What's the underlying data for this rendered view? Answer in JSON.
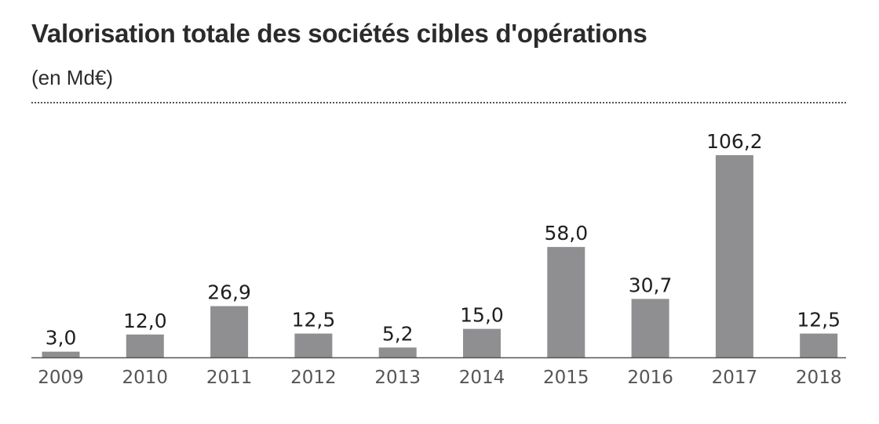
{
  "chart_data": {
    "type": "bar",
    "title": "Valorisation totale des sociétés cibles d'opérations",
    "subtitle": "(en Md€)",
    "categories": [
      "2009",
      "2010",
      "2011",
      "2012",
      "2013",
      "2014",
      "2015",
      "2016",
      "2017",
      "2018"
    ],
    "values": [
      3.0,
      12.0,
      26.9,
      12.5,
      5.2,
      15.0,
      58.0,
      30.7,
      106.2,
      12.5
    ],
    "value_labels": [
      "3,0",
      "12,0",
      "26,9",
      "12,5",
      "5,2",
      "15,0",
      "58,0",
      "30,7",
      "106,2",
      "12,5"
    ],
    "xlabel": "",
    "ylabel": "",
    "ylim": [
      0,
      106.2
    ],
    "grid": false,
    "colors": {
      "bar": "#8f8f91",
      "axis": "#555555",
      "text": "#2b2b2b"
    }
  }
}
